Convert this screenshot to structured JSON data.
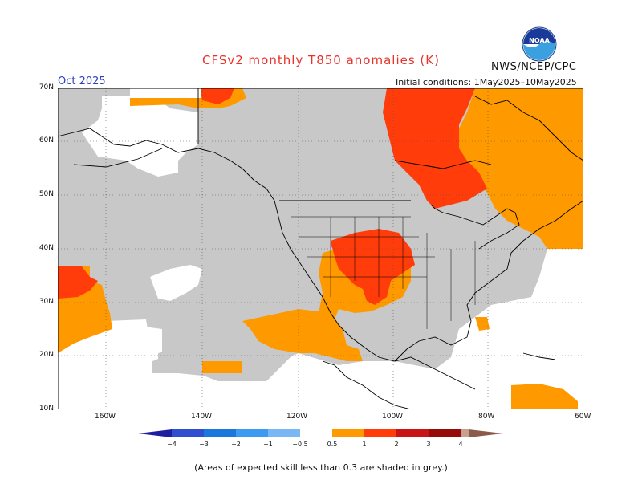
{
  "title": "CFSv2 monthly T850 anomalies (K)",
  "agency": "NWS/NCEP/CPC",
  "logo_text": "NOAA",
  "valid_month": "Oct 2025",
  "initial_conditions": "Initial conditions: 1May2025–10May2025",
  "footnote": "(Areas of expected skill less than 0.3 are shaded in grey.)",
  "lat_labels": [
    "70N",
    "60N",
    "50N",
    "40N",
    "30N",
    "20N",
    "10N"
  ],
  "lon_labels": [
    "160W",
    "140W",
    "120W",
    "100W",
    "80W",
    "60W"
  ],
  "colorbar": {
    "ticks": [
      "−4",
      "−3",
      "−2",
      "−1",
      "−0.5",
      "0.5",
      "1",
      "2",
      "3",
      "4"
    ],
    "colors": [
      "#1e1ea0",
      "#2f4fd0",
      "#1b77dc",
      "#3c9bf0",
      "#7ab8f5",
      "#ffffff",
      "#ff9900",
      "#ff3c0a",
      "#c81414",
      "#960a0a",
      "#c8a090",
      "#8b5a4a"
    ]
  },
  "colors": {
    "skill_grey": "#c8c8c8",
    "anom_05_1": "#ff9900",
    "anom_1_2": "#ff3c0a",
    "title": "#e8322a",
    "month": "#2a3fbf"
  }
}
